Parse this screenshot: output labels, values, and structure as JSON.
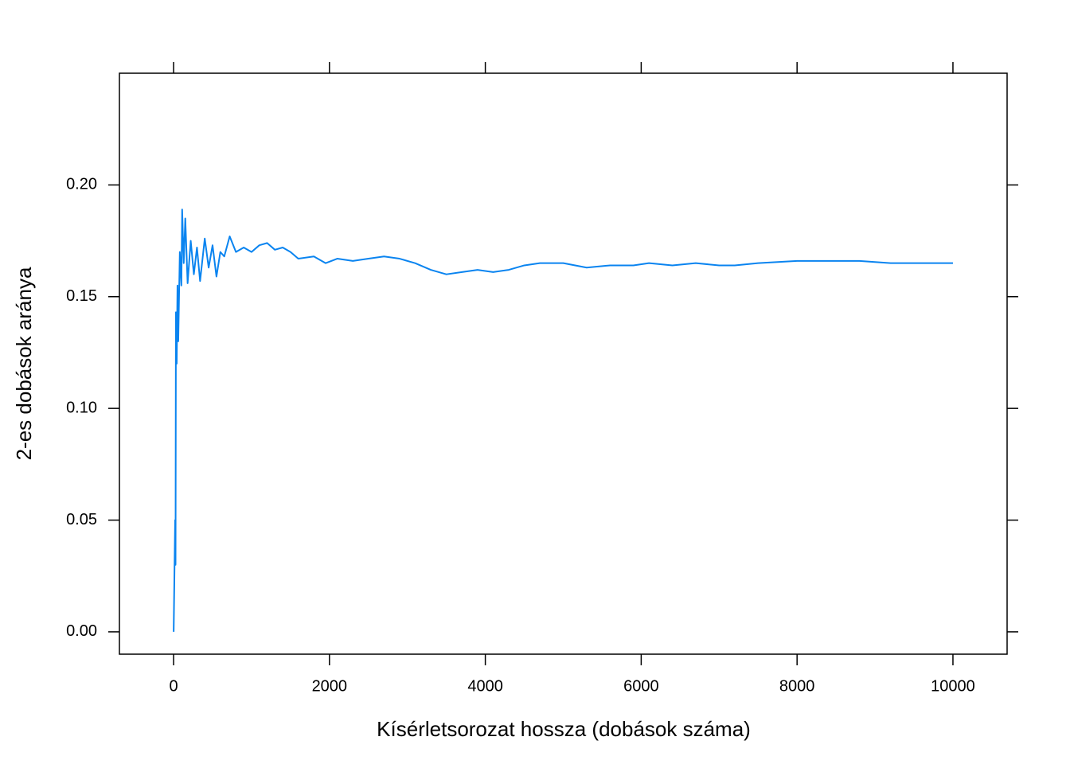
{
  "chart_data": {
    "type": "line",
    "xlabel": "Kísérletsorozat hossza (dobások száma)",
    "ylabel": "2-es dobások aránya",
    "color": "#0a84f0",
    "xlim": [
      -695,
      10695
    ],
    "ylim": [
      -0.01,
      0.25
    ],
    "xticks": [
      0,
      2000,
      4000,
      6000,
      8000,
      10000
    ],
    "yticks": [
      {
        "value": 0,
        "label": "0.00"
      },
      {
        "value": 0.05,
        "label": "0.05"
      },
      {
        "value": 0.1,
        "label": "0.10"
      },
      {
        "value": 0.15,
        "label": "0.15"
      },
      {
        "value": 0.2,
        "label": "0.20"
      }
    ],
    "x": [
      1,
      20,
      25,
      30,
      40,
      50,
      60,
      80,
      100,
      110,
      130,
      150,
      180,
      220,
      260,
      300,
      340,
      400,
      450,
      500,
      550,
      600,
      650,
      720,
      800,
      900,
      1000,
      1100,
      1200,
      1300,
      1400,
      1500,
      1600,
      1800,
      1950,
      2100,
      2300,
      2500,
      2700,
      2900,
      3100,
      3300,
      3500,
      3700,
      3900,
      4100,
      4300,
      4500,
      4700,
      5000,
      5300,
      5600,
      5900,
      6100,
      6400,
      6700,
      7000,
      7200,
      7500,
      8000,
      8400,
      8800,
      9200,
      9600,
      10000
    ],
    "values": [
      0,
      0.05,
      0.03,
      0.143,
      0.12,
      0.155,
      0.13,
      0.17,
      0.155,
      0.189,
      0.165,
      0.185,
      0.156,
      0.175,
      0.16,
      0.172,
      0.157,
      0.176,
      0.163,
      0.173,
      0.159,
      0.17,
      0.168,
      0.177,
      0.17,
      0.172,
      0.17,
      0.173,
      0.174,
      0.171,
      0.172,
      0.17,
      0.167,
      0.168,
      0.165,
      0.167,
      0.166,
      0.167,
      0.168,
      0.167,
      0.165,
      0.162,
      0.16,
      0.161,
      0.162,
      0.161,
      0.162,
      0.164,
      0.165,
      0.165,
      0.163,
      0.164,
      0.164,
      0.165,
      0.164,
      0.165,
      0.164,
      0.164,
      0.165,
      0.166,
      0.166,
      0.166,
      0.165,
      0.165,
      0.165
    ]
  }
}
